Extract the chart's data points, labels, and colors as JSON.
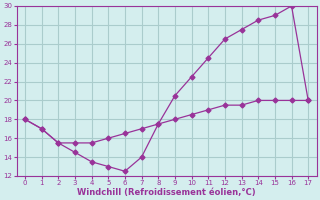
{
  "line1_x": [
    0,
    1,
    2,
    3,
    4,
    5,
    6,
    7,
    8,
    9,
    10,
    11,
    12,
    13,
    14,
    15,
    16,
    17
  ],
  "line1_y": [
    18,
    17,
    15.5,
    14.5,
    13.5,
    13.0,
    12.5,
    14.0,
    17.5,
    20.5,
    22.5,
    24.5,
    26.5,
    27.5,
    28.5,
    29.0,
    30.0,
    20.0
  ],
  "line2_x": [
    0,
    1,
    2,
    3,
    4,
    5,
    6,
    7,
    8,
    9,
    10,
    11,
    12,
    13,
    14,
    15,
    16,
    17
  ],
  "line2_y": [
    18.0,
    17.0,
    15.5,
    15.5,
    15.5,
    16.0,
    16.5,
    17.0,
    17.5,
    18.0,
    18.5,
    19.0,
    19.5,
    19.5,
    20.0,
    20.0,
    20.0,
    20.0
  ],
  "line_color": "#993399",
  "marker": "D",
  "marker_size": 2.5,
  "bg_color": "#d4eeee",
  "grid_color": "#aacccc",
  "xlabel": "Windchill (Refroidissement éolien,°C)",
  "xlabel_color": "#993399",
  "tick_color": "#993399",
  "xlim": [
    -0.5,
    17.5
  ],
  "ylim": [
    12,
    30
  ],
  "xticks": [
    0,
    1,
    2,
    3,
    4,
    5,
    6,
    7,
    8,
    9,
    10,
    11,
    12,
    13,
    14,
    15,
    16,
    17
  ],
  "yticks": [
    12,
    14,
    16,
    18,
    20,
    22,
    24,
    26,
    28,
    30
  ]
}
